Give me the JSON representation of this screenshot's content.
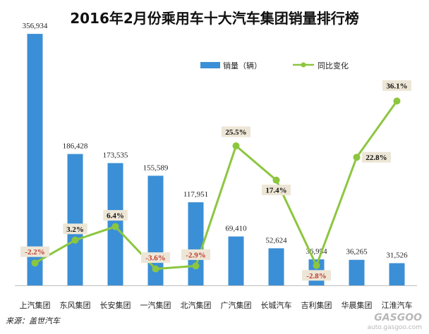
{
  "title": "2016年2月份乘用车十大汽车集团销量排行榜",
  "source": "来源：盖世汽车",
  "watermark": {
    "brand": "GASGOO",
    "url": "auto.gasgoo.com"
  },
  "colors": {
    "bar": "#3b8fd6",
    "line": "#8cc63f",
    "label_bg": "#ede6d6",
    "label_neg": "#c0392b",
    "label_pos": "#111111"
  },
  "chart_data": {
    "type": "bar+line",
    "categories": [
      "上汽集团",
      "东风集团",
      "长安集团",
      "一汽集团",
      "北汽集团",
      "广汽集团",
      "长城汽车",
      "吉利集团",
      "华晨集团",
      "江淮汽车"
    ],
    "series": [
      {
        "name": "销量（辆）",
        "type": "bar",
        "values": [
          356934,
          186428,
          173535,
          155589,
          117951,
          69410,
          52624,
          36954,
          36265,
          31526
        ],
        "labels": [
          "356,934",
          "186,428",
          "173,535",
          "155,589",
          "117,951",
          "69,410",
          "52,624",
          "36,954",
          "36,265",
          "31,526"
        ]
      },
      {
        "name": "同比变化",
        "type": "line",
        "values": [
          -2.2,
          3.2,
          6.4,
          -3.6,
          -2.9,
          25.5,
          17.4,
          -2.8,
          22.8,
          36.1
        ],
        "labels": [
          "-2.2%",
          "3.2%",
          "6.4%",
          "-3.6%",
          "-2.9%",
          "25.5%",
          "17.4%",
          "-2.8%",
          "22.8%",
          "36.1%"
        ]
      }
    ],
    "ylim_bar": [
      0,
      360000
    ],
    "ylim_line": [
      -10,
      40
    ],
    "legend": "top-right",
    "grid": false
  }
}
